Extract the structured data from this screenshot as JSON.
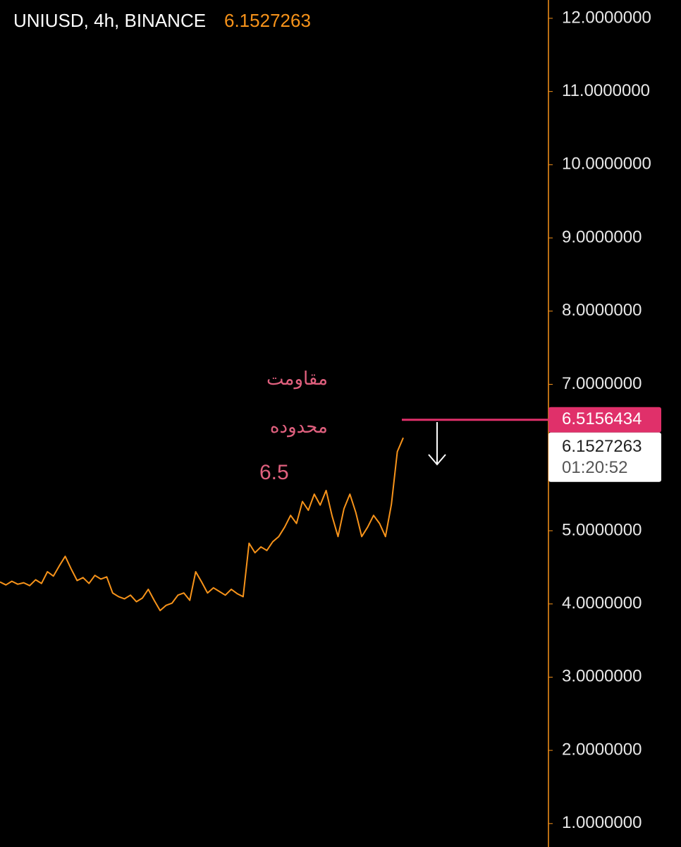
{
  "chart_data": {
    "type": "line",
    "title": "UNIUSD, 4h, BINANCE",
    "last_price": 6.1527263,
    "countdown": "01:20:52",
    "resistance": 6.5156434,
    "annotations": [
      "مقاومت",
      "محدوده",
      "6.5"
    ],
    "series": [
      {
        "name": "UNIUSD",
        "color": "#f7931a",
        "values": [
          4.3,
          4.26,
          4.31,
          4.27,
          4.29,
          4.25,
          4.33,
          4.28,
          4.44,
          4.38,
          4.52,
          4.65,
          4.48,
          4.32,
          4.36,
          4.28,
          4.39,
          4.34,
          4.37,
          4.15,
          4.1,
          4.07,
          4.12,
          4.03,
          4.08,
          4.2,
          4.05,
          3.91,
          3.98,
          4.01,
          4.12,
          4.15,
          4.05,
          4.44,
          4.3,
          4.15,
          4.22,
          4.17,
          4.12,
          4.2,
          4.14,
          4.1,
          4.83,
          4.7,
          4.78,
          4.73,
          4.85,
          4.92,
          5.05,
          5.21,
          5.1,
          5.4,
          5.28,
          5.5,
          5.35,
          5.55,
          5.2,
          4.92,
          5.3,
          5.5,
          5.25,
          4.92,
          5.05,
          5.21,
          5.1,
          4.92,
          5.36,
          6.08,
          6.27
        ]
      }
    ],
    "ylim": [
      12.25,
      0.68
    ],
    "yticks": [
      {
        "value": 12,
        "label": "12.0000000"
      },
      {
        "value": 11,
        "label": "11.0000000"
      },
      {
        "value": 10,
        "label": "10.0000000"
      },
      {
        "value": 9,
        "label": "9.0000000"
      },
      {
        "value": 8,
        "label": "8.0000000"
      },
      {
        "value": 7,
        "label": "7.0000000"
      },
      {
        "value": 5,
        "label": "5.0000000"
      },
      {
        "value": 4,
        "label": "4.0000000"
      },
      {
        "value": 3,
        "label": "3.0000000"
      },
      {
        "value": 2,
        "label": "2.0000000"
      },
      {
        "value": 1,
        "label": "1.0000000"
      }
    ]
  }
}
